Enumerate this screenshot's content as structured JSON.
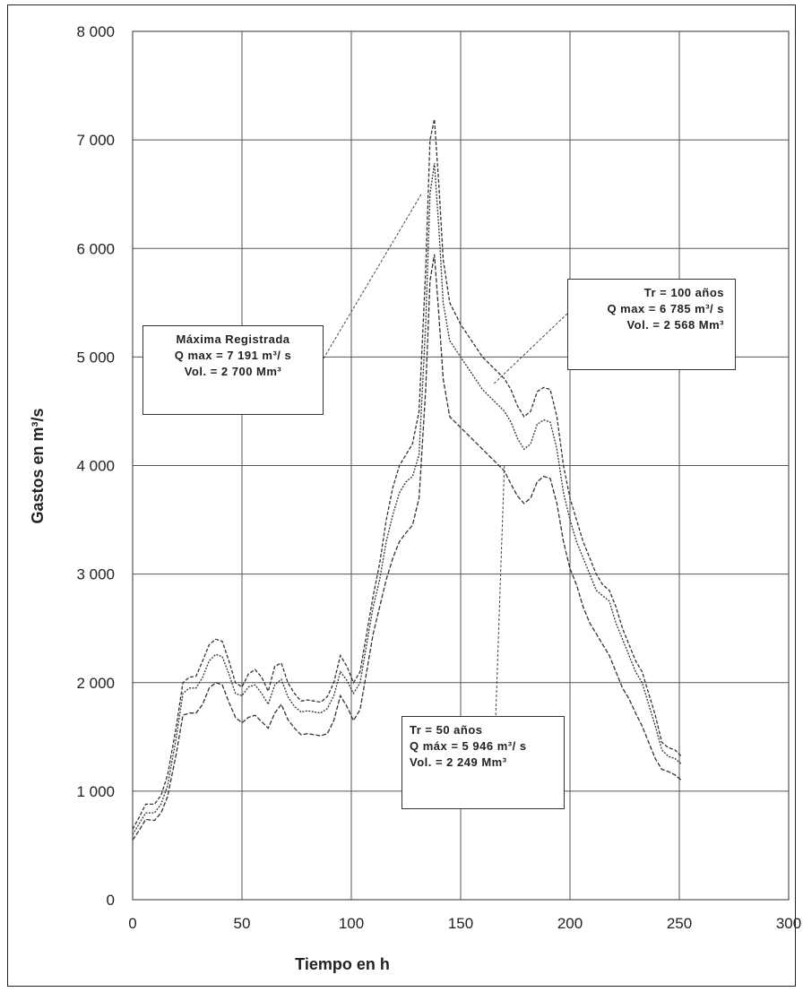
{
  "chart_data": {
    "type": "line",
    "xlabel": "Tiempo en h",
    "ylabel": "Gastos en m³/s",
    "xlim": [
      0,
      300
    ],
    "ylim": [
      0,
      8000
    ],
    "xticks": [
      0,
      50,
      100,
      150,
      200,
      250,
      300
    ],
    "yticks": [
      0,
      1000,
      2000,
      3000,
      4000,
      5000,
      6000,
      7000,
      8000
    ],
    "xtick_labels": [
      "0",
      "50",
      "100",
      "150",
      "200",
      "250",
      "300"
    ],
    "ytick_labels": [
      "0",
      "1 000",
      "2 000",
      "3 000",
      "4 000",
      "5 000",
      "6 000",
      "7 000",
      "8 000"
    ],
    "grid": true,
    "series": [
      {
        "label": "Máxima Registrada",
        "points": [
          [
            0,
            650
          ],
          [
            3,
            760
          ],
          [
            6,
            880
          ],
          [
            10,
            880
          ],
          [
            13,
            960
          ],
          [
            16,
            1150
          ],
          [
            20,
            1600
          ],
          [
            23,
            2000
          ],
          [
            26,
            2050
          ],
          [
            29,
            2060
          ],
          [
            32,
            2200
          ],
          [
            35,
            2350
          ],
          [
            38,
            2400
          ],
          [
            41,
            2380
          ],
          [
            44,
            2200
          ],
          [
            47,
            2000
          ],
          [
            50,
            1960
          ],
          [
            53,
            2080
          ],
          [
            56,
            2120
          ],
          [
            59,
            2050
          ],
          [
            62,
            1920
          ],
          [
            65,
            2150
          ],
          [
            68,
            2180
          ],
          [
            71,
            2000
          ],
          [
            74,
            1900
          ],
          [
            77,
            1830
          ],
          [
            80,
            1840
          ],
          [
            83,
            1830
          ],
          [
            86,
            1820
          ],
          [
            89,
            1870
          ],
          [
            92,
            2000
          ],
          [
            95,
            2250
          ],
          [
            98,
            2150
          ],
          [
            101,
            2000
          ],
          [
            104,
            2100
          ],
          [
            107,
            2450
          ],
          [
            110,
            2800
          ],
          [
            113,
            3100
          ],
          [
            116,
            3500
          ],
          [
            119,
            3800
          ],
          [
            122,
            4000
          ],
          [
            125,
            4100
          ],
          [
            128,
            4200
          ],
          [
            131,
            4500
          ],
          [
            134,
            5800
          ],
          [
            136,
            7000
          ],
          [
            138,
            7191
          ],
          [
            140,
            6600
          ],
          [
            142,
            5900
          ],
          [
            145,
            5500
          ],
          [
            150,
            5300
          ],
          [
            155,
            5150
          ],
          [
            160,
            5000
          ],
          [
            165,
            4900
          ],
          [
            170,
            4800
          ],
          [
            173,
            4700
          ],
          [
            176,
            4550
          ],
          [
            179,
            4450
          ],
          [
            182,
            4500
          ],
          [
            185,
            4680
          ],
          [
            188,
            4720
          ],
          [
            191,
            4700
          ],
          [
            194,
            4450
          ],
          [
            197,
            4000
          ],
          [
            200,
            3700
          ],
          [
            203,
            3500
          ],
          [
            206,
            3300
          ],
          [
            209,
            3150
          ],
          [
            212,
            3000
          ],
          [
            215,
            2900
          ],
          [
            218,
            2850
          ],
          [
            221,
            2700
          ],
          [
            224,
            2500
          ],
          [
            227,
            2350
          ],
          [
            230,
            2200
          ],
          [
            233,
            2100
          ],
          [
            236,
            1900
          ],
          [
            239,
            1700
          ],
          [
            242,
            1450
          ],
          [
            245,
            1400
          ],
          [
            248,
            1380
          ],
          [
            251,
            1320
          ]
        ]
      },
      {
        "label": "Tr = 100 años",
        "points": [
          [
            0,
            600
          ],
          [
            3,
            700
          ],
          [
            6,
            800
          ],
          [
            10,
            800
          ],
          [
            13,
            880
          ],
          [
            16,
            1050
          ],
          [
            20,
            1500
          ],
          [
            23,
            1900
          ],
          [
            26,
            1950
          ],
          [
            29,
            1950
          ],
          [
            32,
            2050
          ],
          [
            35,
            2200
          ],
          [
            38,
            2260
          ],
          [
            41,
            2240
          ],
          [
            44,
            2080
          ],
          [
            47,
            1900
          ],
          [
            50,
            1880
          ],
          [
            53,
            1960
          ],
          [
            56,
            1980
          ],
          [
            59,
            1900
          ],
          [
            62,
            1800
          ],
          [
            65,
            1980
          ],
          [
            68,
            2030
          ],
          [
            71,
            1870
          ],
          [
            74,
            1780
          ],
          [
            77,
            1730
          ],
          [
            80,
            1740
          ],
          [
            83,
            1730
          ],
          [
            86,
            1720
          ],
          [
            89,
            1760
          ],
          [
            92,
            1880
          ],
          [
            95,
            2100
          ],
          [
            98,
            2020
          ],
          [
            101,
            1900
          ],
          [
            104,
            2000
          ],
          [
            107,
            2350
          ],
          [
            110,
            2700
          ],
          [
            113,
            2950
          ],
          [
            116,
            3300
          ],
          [
            119,
            3550
          ],
          [
            122,
            3750
          ],
          [
            125,
            3850
          ],
          [
            128,
            3900
          ],
          [
            131,
            4100
          ],
          [
            134,
            5300
          ],
          [
            136,
            6500
          ],
          [
            138,
            6785
          ],
          [
            140,
            6200
          ],
          [
            142,
            5500
          ],
          [
            145,
            5150
          ],
          [
            150,
            5000
          ],
          [
            155,
            4850
          ],
          [
            160,
            4700
          ],
          [
            165,
            4600
          ],
          [
            170,
            4500
          ],
          [
            173,
            4400
          ],
          [
            176,
            4250
          ],
          [
            179,
            4150
          ],
          [
            182,
            4200
          ],
          [
            185,
            4380
          ],
          [
            188,
            4420
          ],
          [
            191,
            4400
          ],
          [
            194,
            4150
          ],
          [
            197,
            3750
          ],
          [
            200,
            3500
          ],
          [
            203,
            3300
          ],
          [
            206,
            3150
          ],
          [
            209,
            3000
          ],
          [
            212,
            2850
          ],
          [
            215,
            2800
          ],
          [
            218,
            2750
          ],
          [
            221,
            2550
          ],
          [
            224,
            2400
          ],
          [
            227,
            2250
          ],
          [
            230,
            2100
          ],
          [
            233,
            2000
          ],
          [
            236,
            1800
          ],
          [
            239,
            1600
          ],
          [
            242,
            1380
          ],
          [
            245,
            1320
          ],
          [
            248,
            1300
          ],
          [
            251,
            1250
          ]
        ]
      },
      {
        "label": "Tr = 50 años",
        "points": [
          [
            0,
            550
          ],
          [
            3,
            640
          ],
          [
            6,
            740
          ],
          [
            10,
            730
          ],
          [
            13,
            800
          ],
          [
            16,
            950
          ],
          [
            20,
            1350
          ],
          [
            23,
            1700
          ],
          [
            26,
            1720
          ],
          [
            29,
            1720
          ],
          [
            32,
            1800
          ],
          [
            35,
            1950
          ],
          [
            38,
            2000
          ],
          [
            41,
            1980
          ],
          [
            44,
            1820
          ],
          [
            47,
            1680
          ],
          [
            50,
            1630
          ],
          [
            53,
            1680
          ],
          [
            56,
            1700
          ],
          [
            59,
            1640
          ],
          [
            62,
            1580
          ],
          [
            65,
            1720
          ],
          [
            68,
            1800
          ],
          [
            71,
            1660
          ],
          [
            74,
            1580
          ],
          [
            77,
            1520
          ],
          [
            80,
            1530
          ],
          [
            83,
            1520
          ],
          [
            86,
            1510
          ],
          [
            89,
            1530
          ],
          [
            92,
            1650
          ],
          [
            95,
            1880
          ],
          [
            98,
            1780
          ],
          [
            101,
            1650
          ],
          [
            104,
            1750
          ],
          [
            107,
            2100
          ],
          [
            110,
            2450
          ],
          [
            113,
            2700
          ],
          [
            116,
            2950
          ],
          [
            119,
            3150
          ],
          [
            122,
            3300
          ],
          [
            125,
            3380
          ],
          [
            128,
            3450
          ],
          [
            131,
            3700
          ],
          [
            134,
            4700
          ],
          [
            136,
            5700
          ],
          [
            138,
            5946
          ],
          [
            140,
            5400
          ],
          [
            142,
            4800
          ],
          [
            145,
            4450
          ],
          [
            150,
            4350
          ],
          [
            155,
            4250
          ],
          [
            160,
            4150
          ],
          [
            165,
            4050
          ],
          [
            170,
            3950
          ],
          [
            173,
            3830
          ],
          [
            176,
            3720
          ],
          [
            179,
            3650
          ],
          [
            182,
            3700
          ],
          [
            185,
            3850
          ],
          [
            188,
            3900
          ],
          [
            191,
            3880
          ],
          [
            194,
            3650
          ],
          [
            197,
            3300
          ],
          [
            200,
            3050
          ],
          [
            203,
            2900
          ],
          [
            206,
            2700
          ],
          [
            209,
            2550
          ],
          [
            212,
            2450
          ],
          [
            215,
            2350
          ],
          [
            218,
            2250
          ],
          [
            221,
            2100
          ],
          [
            224,
            1950
          ],
          [
            227,
            1850
          ],
          [
            230,
            1720
          ],
          [
            233,
            1600
          ],
          [
            236,
            1450
          ],
          [
            239,
            1300
          ],
          [
            242,
            1200
          ],
          [
            245,
            1180
          ],
          [
            248,
            1150
          ],
          [
            251,
            1100
          ]
        ]
      }
    ],
    "annotations": [
      {
        "lines": [
          "Máxima Registrada",
          "Q max = 7 191 m³/ s",
          "Vol. = 2 700 Mm³"
        ],
        "pointer_to": [
          132,
          6500
        ]
      },
      {
        "lines": [
          "Tr = 100 años",
          "Q max = 6 785 m³/ s",
          "Vol. = 2 568 Mm³"
        ],
        "pointer_to": [
          165,
          4750
        ]
      },
      {
        "lines": [
          "Tr = 50 años",
          "Q máx = 5 946 m³/ s",
          "Vol. = 2 249 Mm³"
        ],
        "pointer_to": [
          170,
          4000
        ]
      }
    ],
    "line_color": "#333333",
    "grid_color": "#555555"
  }
}
